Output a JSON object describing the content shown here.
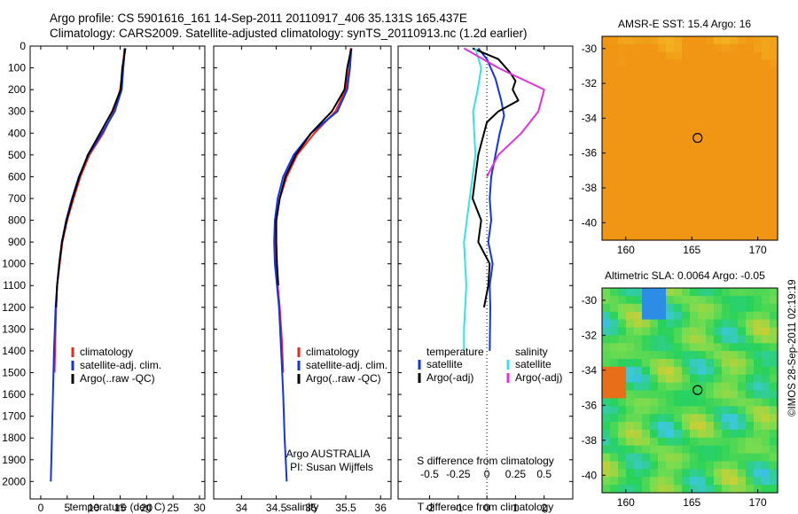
{
  "title_line1": "Argo profile: CS 5901616_161 14-Sep-2011 20110917_406 35.131S 165.437E",
  "title_line2": "Climatology: CARS2009. Satellite-adjusted climatology: synTS_20110913.nc (1.2d earlier)",
  "colors": {
    "clim": "#e8281e",
    "sat": "#1432e6",
    "argo": "#000000",
    "sal_sat": "#38e0e0",
    "sal_argo": "#e030e0"
  },
  "chart_data": [
    {
      "type": "line",
      "xlabel": "temperature (deg C)",
      "xlim": [
        -2,
        31
      ],
      "xticks": [
        0,
        5,
        10,
        15,
        20,
        25,
        30
      ],
      "ylim": [
        2080,
        0
      ],
      "yticks": [
        0,
        100,
        200,
        300,
        400,
        500,
        600,
        700,
        800,
        900,
        1000,
        1100,
        1200,
        1300,
        1400,
        1500,
        1600,
        1700,
        1800,
        1900,
        2000
      ],
      "legend": [
        "climatology",
        "satellite-adj. clim.",
        "Argo(..raw -QC)"
      ],
      "series": [
        {
          "name": "climatology",
          "color": "clim",
          "x": [
            15.8,
            15.5,
            15.0,
            13.8,
            11.8,
            9.2,
            7.5,
            6.2,
            5.0,
            4.1,
            3.6,
            3.1,
            2.9,
            2.6
          ],
          "y": [
            10,
            100,
            200,
            300,
            400,
            500,
            600,
            700,
            800,
            900,
            1000,
            1100,
            1200,
            1500
          ]
        },
        {
          "name": "satellite-adj. clim.",
          "color": "sat",
          "x": [
            15.9,
            15.6,
            15.3,
            14.0,
            11.6,
            9.0,
            7.2,
            5.9,
            4.8,
            4.0,
            3.5,
            3.1,
            2.8,
            2.5,
            2.3,
            2.1,
            1.9
          ],
          "y": [
            10,
            100,
            200,
            300,
            400,
            500,
            600,
            700,
            800,
            900,
            1000,
            1100,
            1200,
            1400,
            1600,
            1800,
            2000
          ]
        },
        {
          "name": "Argo(..raw -QC)",
          "color": "argo",
          "x": [
            16.0,
            15.4,
            15.1,
            13.5,
            11.2,
            8.9,
            7.3,
            6.0,
            4.9,
            4.0,
            3.5,
            3.1,
            2.9
          ],
          "y": [
            10,
            100,
            200,
            300,
            400,
            500,
            600,
            700,
            800,
            900,
            1000,
            1100,
            1200
          ]
        }
      ]
    },
    {
      "type": "line",
      "xlabel": "salinity",
      "xlim": [
        33.6,
        36.15
      ],
      "xticks": [
        34,
        34.5,
        35,
        35.5,
        36
      ],
      "ylim": [
        2080,
        0
      ],
      "legend": [
        "climatology",
        "satellite-adj. clim.",
        "Argo(..raw -QC)"
      ],
      "annotation": [
        "Argo AUSTRALIA",
        "PI: Susan Wijffels"
      ],
      "series": [
        {
          "name": "climatology",
          "color": "clim",
          "x": [
            35.57,
            35.55,
            35.5,
            35.35,
            35.05,
            34.8,
            34.65,
            34.55,
            34.5,
            34.49,
            34.5,
            34.52,
            34.55,
            34.58,
            34.6
          ],
          "y": [
            10,
            100,
            200,
            300,
            400,
            500,
            600,
            700,
            800,
            900,
            1000,
            1100,
            1200,
            1350,
            1500
          ]
        },
        {
          "name": "satellite-adj. clim.",
          "color": "sat",
          "x": [
            35.58,
            35.56,
            35.52,
            35.38,
            35.0,
            34.75,
            34.6,
            34.52,
            34.48,
            34.47,
            34.48,
            34.51,
            34.54,
            34.57,
            34.6,
            34.62,
            34.65
          ],
          "y": [
            10,
            100,
            200,
            300,
            400,
            500,
            600,
            700,
            800,
            900,
            1000,
            1100,
            1200,
            1400,
            1600,
            1800,
            2000
          ]
        },
        {
          "name": "Argo(..raw -QC)",
          "color": "argo",
          "x": [
            35.58,
            35.52,
            35.48,
            35.3,
            35.0,
            34.78,
            34.63,
            34.55,
            34.5,
            34.5,
            34.51,
            34.53
          ],
          "y": [
            10,
            100,
            200,
            300,
            400,
            500,
            600,
            700,
            800,
            900,
            1000,
            1100
          ]
        }
      ]
    },
    {
      "type": "line",
      "xlabel": "T difference from climatology",
      "xlabel2": "S difference from climatology",
      "xlim": [
        -3.1,
        3.0
      ],
      "xticks": [
        -2,
        -1,
        0,
        1,
        2
      ],
      "x2ticks": [
        -0.5,
        -0.25,
        0,
        0.25,
        0.5
      ],
      "x2ticklabels": [
        "-0.5",
        "-0.25",
        "0",
        "0.25",
        "0.5"
      ],
      "ylim": [
        2080,
        0
      ],
      "legend_temperature": [
        "temperature",
        "satellite",
        "Argo(-adj)"
      ],
      "legend_salinity": [
        "salinity",
        "satellite",
        "Argo(-adj)"
      ],
      "series": [
        {
          "name": "satellite",
          "group": "temperature",
          "color": "sat",
          "x": [
            -0.3,
            0,
            0.3,
            0.5,
            0.6,
            0.45,
            0.3,
            0.15,
            0.1,
            0.15,
            0.05,
            0.2,
            0.1,
            0.12,
            0.1
          ],
          "y": [
            10,
            60,
            150,
            250,
            320,
            400,
            500,
            600,
            700,
            800,
            900,
            1000,
            1100,
            1200,
            1400
          ]
        },
        {
          "name": "Argo(-adj)",
          "group": "temperature",
          "color": "argo",
          "x": [
            -0.5,
            0.4,
            0.8,
            1.0,
            0.9,
            1.1,
            0.4,
            0.0,
            -0.3,
            -0.4,
            -0.5,
            -0.2,
            -0.3,
            0.1,
            0.05,
            -0.1
          ],
          "y": [
            10,
            60,
            120,
            160,
            200,
            250,
            300,
            350,
            500,
            600,
            700,
            800,
            900,
            1000,
            1100,
            1200
          ]
        },
        {
          "name": "satellite",
          "group": "salinity",
          "color": "sal_sat",
          "x": [
            -0.1,
            -0.05,
            -0.08,
            -0.12,
            -0.1,
            -0.15,
            -0.2,
            -0.18,
            -0.2,
            -0.2
          ],
          "y": [
            10,
            100,
            200,
            300,
            500,
            700,
            900,
            1100,
            1300,
            1400
          ]
        },
        {
          "name": "Argo(-adj)",
          "group": "salinity",
          "color": "sal_argo",
          "x": [
            -0.2,
            0.1,
            0.3,
            0.5,
            0.45,
            0.3,
            0.1,
            0.0
          ],
          "y": [
            10,
            100,
            150,
            200,
            300,
            400,
            500,
            600
          ]
        }
      ]
    },
    {
      "type": "heatmap",
      "title": "AMSR-E SST: 15.4 Argo: 16",
      "xticks": [
        160,
        165,
        170
      ],
      "yticks": [
        -30,
        -32,
        -34,
        -36,
        -38,
        -40
      ]
    },
    {
      "type": "heatmap",
      "title": "Altimetric SLA: 0.0064 Argo: -0.05",
      "xticks": [
        160,
        165,
        170
      ],
      "yticks": [
        -30,
        -32,
        -34,
        -36,
        -38,
        -40
      ]
    }
  ],
  "credit": "©IMOS 28-Sep-2011 02:19:19"
}
